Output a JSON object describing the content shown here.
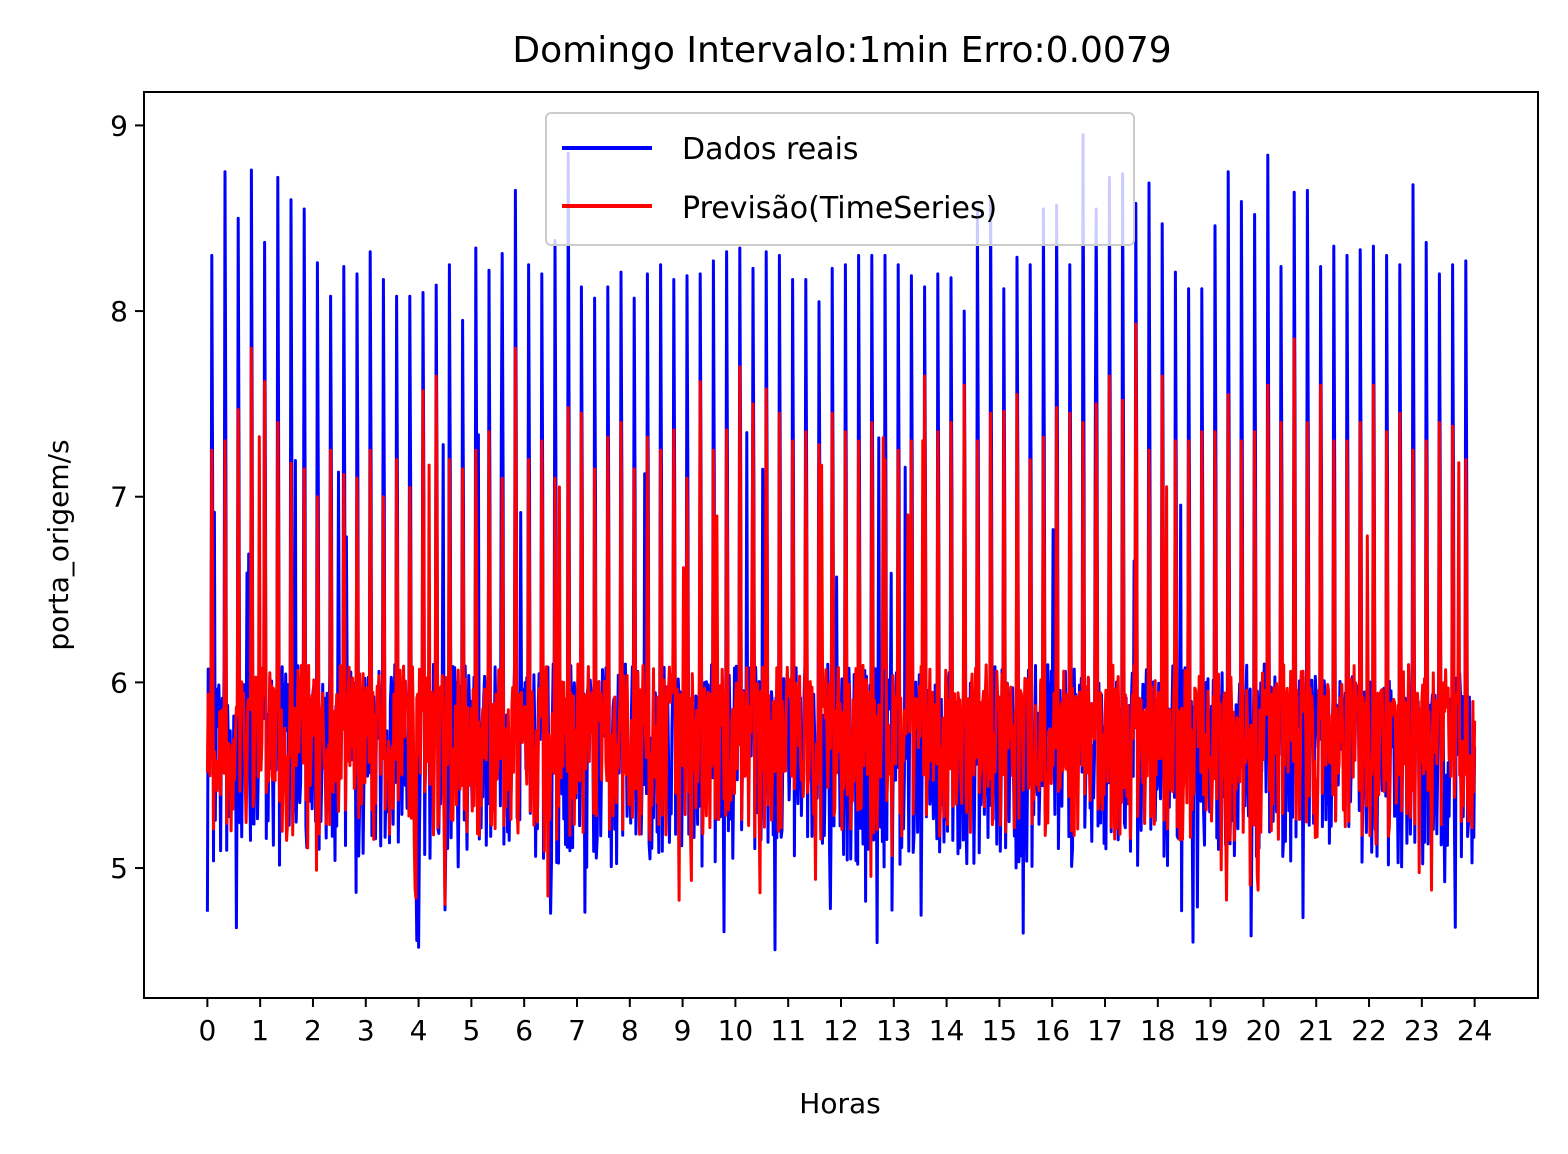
{
  "chart_data": {
    "type": "line",
    "title": "Domingo Intervalo:1min Erro:0.0079",
    "xlabel": "Horas",
    "ylabel": "porta_origem/s",
    "xlim": [
      -1.2,
      25.2
    ],
    "ylim": [
      4.3,
      9.18
    ],
    "x_ticks": [
      0,
      1,
      2,
      3,
      4,
      5,
      6,
      7,
      8,
      9,
      10,
      11,
      12,
      13,
      14,
      15,
      16,
      17,
      18,
      19,
      20,
      21,
      22,
      23,
      24
    ],
    "x_tick_labels": [
      "0",
      "1",
      "2",
      "3",
      "4",
      "5",
      "6",
      "7",
      "8",
      "9",
      "10",
      "11",
      "12",
      "13",
      "14",
      "15",
      "16",
      "17",
      "18",
      "19",
      "20",
      "21",
      "22",
      "23",
      "24"
    ],
    "y_ticks": [
      5,
      6,
      7,
      8,
      9
    ],
    "y_tick_labels": [
      "5",
      "6",
      "7",
      "8",
      "9"
    ],
    "legend_position": "upper center",
    "grid": false,
    "sampling": "1 point per minute, x in hours (0 to 24)",
    "series": [
      {
        "name": "Dados reais",
        "color": "#0000ff",
        "baseline": 5.7,
        "noise_low": 5.0,
        "noise_high": 6.1,
        "peak_hours": [
          0.08,
          0.33,
          0.58,
          0.83,
          1.08,
          1.33,
          1.58,
          1.83,
          2.08,
          2.33,
          2.58,
          2.83,
          3.08,
          3.33,
          3.58,
          3.83,
          4.08,
          4.33,
          4.58,
          4.83,
          5.08,
          5.33,
          5.58,
          5.83,
          6.08,
          6.33,
          6.58,
          6.83,
          7.08,
          7.33,
          7.58,
          7.83,
          8.08,
          8.33,
          8.58,
          8.83,
          9.08,
          9.33,
          9.58,
          9.83,
          10.08,
          10.33,
          10.58,
          10.83,
          11.08,
          11.33,
          11.58,
          11.83,
          12.08,
          12.33,
          12.58,
          12.83,
          13.08,
          13.33,
          13.58,
          13.83,
          14.08,
          14.33,
          14.58,
          14.83,
          15.08,
          15.33,
          15.58,
          15.83,
          16.08,
          16.33,
          16.58,
          16.83,
          17.08,
          17.33,
          17.58,
          17.83,
          18.08,
          18.33,
          18.58,
          18.83,
          19.08,
          19.33,
          19.58,
          19.83,
          20.08,
          20.33,
          20.58,
          20.83,
          21.08,
          21.33,
          21.58,
          21.83,
          22.08,
          22.33,
          22.58,
          22.83,
          23.08,
          23.33,
          23.58,
          23.83
        ],
        "peak_values": [
          8.3,
          8.75,
          8.5,
          8.76,
          8.37,
          8.72,
          8.6,
          8.55,
          8.26,
          8.08,
          8.24,
          8.2,
          8.32,
          8.17,
          8.08,
          8.08,
          8.1,
          8.14,
          8.25,
          7.95,
          8.34,
          8.22,
          8.31,
          8.65,
          8.25,
          8.2,
          8.38,
          8.85,
          8.13,
          8.07,
          8.13,
          8.21,
          8.07,
          8.2,
          8.25,
          8.17,
          8.19,
          8.2,
          8.27,
          8.32,
          8.34,
          8.23,
          8.32,
          8.3,
          8.17,
          8.17,
          8.05,
          8.23,
          8.25,
          8.3,
          8.3,
          8.3,
          8.25,
          8.19,
          8.13,
          8.2,
          8.18,
          8.0,
          8.55,
          8.6,
          8.12,
          8.29,
          8.25,
          8.55,
          8.57,
          8.25,
          8.95,
          8.55,
          8.72,
          8.74,
          8.58,
          8.69,
          8.47,
          8.21,
          8.12,
          8.12,
          8.46,
          8.75,
          8.59,
          8.52,
          8.84,
          8.24,
          8.64,
          8.65,
          8.24,
          8.35,
          8.3,
          8.33,
          8.35,
          8.3,
          8.25,
          8.68,
          8.37,
          8.2,
          8.25,
          8.27
        ],
        "min_value": 4.52,
        "max_value": 8.95
      },
      {
        "name": "Previsão(TimeSeries)",
        "color": "#ff0000",
        "baseline": 5.72,
        "noise_low": 5.15,
        "noise_high": 6.1,
        "peak_hours": [
          0.08,
          0.33,
          0.58,
          0.83,
          1.08,
          1.33,
          1.58,
          1.83,
          2.08,
          2.33,
          2.58,
          2.83,
          3.08,
          3.33,
          3.58,
          3.83,
          4.08,
          4.33,
          4.58,
          4.83,
          5.08,
          5.33,
          5.58,
          5.83,
          6.08,
          6.33,
          6.58,
          6.83,
          7.08,
          7.33,
          7.58,
          7.83,
          8.08,
          8.33,
          8.58,
          8.83,
          9.08,
          9.33,
          9.58,
          9.83,
          10.08,
          10.33,
          10.58,
          10.83,
          11.08,
          11.33,
          11.58,
          11.83,
          12.08,
          12.33,
          12.58,
          12.83,
          13.08,
          13.33,
          13.58,
          13.83,
          14.08,
          14.33,
          14.58,
          14.83,
          15.08,
          15.33,
          15.58,
          15.83,
          16.08,
          16.33,
          16.58,
          16.83,
          17.08,
          17.33,
          17.58,
          17.83,
          18.08,
          18.33,
          18.58,
          18.83,
          19.08,
          19.33,
          19.58,
          19.83,
          20.08,
          20.33,
          20.58,
          20.83,
          21.08,
          21.33,
          21.58,
          21.83,
          22.08,
          22.33,
          22.58,
          22.83,
          23.08,
          23.33,
          23.58,
          23.83
        ],
        "peak_values": [
          7.25,
          7.3,
          7.47,
          7.8,
          7.62,
          7.4,
          7.18,
          7.15,
          7.0,
          7.25,
          7.12,
          7.1,
          7.25,
          7.0,
          7.2,
          7.05,
          7.57,
          7.65,
          7.2,
          7.15,
          7.25,
          7.35,
          7.1,
          7.8,
          7.2,
          7.3,
          7.1,
          7.48,
          7.45,
          7.15,
          7.32,
          7.4,
          7.15,
          7.32,
          7.25,
          7.36,
          7.1,
          7.62,
          7.25,
          7.36,
          7.7,
          7.5,
          7.58,
          7.45,
          7.3,
          7.35,
          7.28,
          7.45,
          7.35,
          7.3,
          7.4,
          7.2,
          7.25,
          7.3,
          7.65,
          7.35,
          7.4,
          7.6,
          7.3,
          7.45,
          7.46,
          7.55,
          7.2,
          7.32,
          7.48,
          7.45,
          7.4,
          7.5,
          7.65,
          7.52,
          7.93,
          7.25,
          7.65,
          7.3,
          7.3,
          7.35,
          7.35,
          7.55,
          7.3,
          7.35,
          7.6,
          7.4,
          7.85,
          7.4,
          7.6,
          7.3,
          7.3,
          7.4,
          7.6,
          7.35,
          7.45,
          7.25,
          7.3,
          7.4,
          7.38,
          7.2
        ],
        "min_value": 4.8,
        "max_value": 7.93
      }
    ]
  }
}
